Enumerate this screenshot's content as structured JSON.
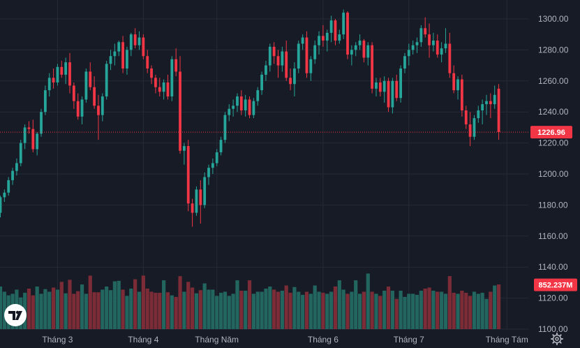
{
  "colors": {
    "background": "#171b26",
    "up": "#26a69a",
    "down": "#f23645",
    "up_volume": "#22665f",
    "down_volume": "#7b2c36",
    "grid": "#262a35",
    "text": "#b2b5be",
    "price_line": "#f23645"
  },
  "icons": {
    "logo": "tradingview-logo",
    "settings": "gear-icon"
  },
  "chart_data": {
    "type": "candlestick",
    "y_axis": {
      "range": [
        1098,
        1308
      ],
      "ticks": [
        1100,
        1120,
        1140,
        1160,
        1180,
        1200,
        1220,
        1240,
        1260,
        1280,
        1300
      ],
      "tick_labels": [
        "1100.00",
        "1120.00",
        "1140.00",
        "1160.00",
        "1180.00",
        "1200.00",
        "1220.00",
        "1240.00",
        "1260.00",
        "1280.00",
        "1300.00"
      ]
    },
    "x_axis": {
      "labels": [
        {
          "text": "Tháng 3",
          "bar": 14
        },
        {
          "text": "Tháng 4",
          "bar": 35
        },
        {
          "text": "Tháng Năm",
          "bar": 53
        },
        {
          "text": "Tháng 6",
          "bar": 79
        },
        {
          "text": "Tháng 7",
          "bar": 100
        },
        {
          "text": "Tháng Tám",
          "bar": 124
        }
      ]
    },
    "last_price": {
      "value": 1226.96,
      "label": "1226.96"
    },
    "last_volume": {
      "value": 852237000,
      "label": "852.237M"
    },
    "volume_scale_max": 1600000000,
    "ohlc": [
      [
        1175,
        1186,
        1172,
        1185
      ],
      [
        1185,
        1190,
        1182,
        1188
      ],
      [
        1188,
        1198,
        1186,
        1196
      ],
      [
        1196,
        1204,
        1193,
        1202
      ],
      [
        1202,
        1210,
        1199,
        1207
      ],
      [
        1207,
        1222,
        1205,
        1220
      ],
      [
        1220,
        1232,
        1216,
        1230
      ],
      [
        1230,
        1234,
        1226,
        1229
      ],
      [
        1229,
        1235,
        1214,
        1216
      ],
      [
        1216,
        1227,
        1212,
        1226
      ],
      [
        1226,
        1242,
        1224,
        1240
      ],
      [
        1240,
        1257,
        1238,
        1254
      ],
      [
        1254,
        1265,
        1250,
        1262
      ],
      [
        1262,
        1268,
        1255,
        1259
      ],
      [
        1259,
        1271,
        1257,
        1269
      ],
      [
        1269,
        1273,
        1262,
        1264
      ],
      [
        1264,
        1275,
        1258,
        1272
      ],
      [
        1272,
        1278,
        1252,
        1257
      ],
      [
        1257,
        1259,
        1242,
        1247
      ],
      [
        1247,
        1252,
        1235,
        1237
      ],
      [
        1237,
        1250,
        1232,
        1248
      ],
      [
        1248,
        1268,
        1246,
        1266
      ],
      [
        1266,
        1272,
        1254,
        1256
      ],
      [
        1256,
        1263,
        1242,
        1244
      ],
      [
        1244,
        1251,
        1222,
        1238
      ],
      [
        1238,
        1252,
        1234,
        1250
      ],
      [
        1250,
        1273,
        1248,
        1271
      ],
      [
        1271,
        1280,
        1267,
        1276
      ],
      [
        1276,
        1284,
        1270,
        1279
      ],
      [
        1279,
        1286,
        1276,
        1285
      ],
      [
        1285,
        1289,
        1265,
        1268
      ],
      [
        1268,
        1282,
        1264,
        1280
      ],
      [
        1280,
        1291,
        1276,
        1290
      ],
      [
        1290,
        1294,
        1281,
        1283
      ],
      [
        1283,
        1292,
        1280,
        1288
      ],
      [
        1288,
        1290,
        1274,
        1276
      ],
      [
        1276,
        1280,
        1265,
        1268
      ],
      [
        1268,
        1270,
        1258,
        1262
      ],
      [
        1262,
        1264,
        1252,
        1256
      ],
      [
        1256,
        1262,
        1250,
        1253
      ],
      [
        1253,
        1261,
        1248,
        1259
      ],
      [
        1259,
        1264,
        1248,
        1250
      ],
      [
        1250,
        1276,
        1247,
        1274
      ],
      [
        1274,
        1281,
        1263,
        1266
      ],
      [
        1266,
        1276,
        1213,
        1215
      ],
      [
        1215,
        1220,
        1206,
        1218
      ],
      [
        1218,
        1222,
        1176,
        1181
      ],
      [
        1181,
        1184,
        1166,
        1175
      ],
      [
        1175,
        1192,
        1173,
        1190
      ],
      [
        1190,
        1196,
        1168,
        1180
      ],
      [
        1180,
        1201,
        1178,
        1198
      ],
      [
        1198,
        1206,
        1193,
        1204
      ],
      [
        1204,
        1210,
        1200,
        1207
      ],
      [
        1207,
        1216,
        1205,
        1214
      ],
      [
        1214,
        1224,
        1212,
        1222
      ],
      [
        1222,
        1240,
        1220,
        1238
      ],
      [
        1238,
        1245,
        1234,
        1242
      ],
      [
        1242,
        1248,
        1237,
        1244
      ],
      [
        1244,
        1252,
        1240,
        1250
      ],
      [
        1250,
        1254,
        1238,
        1241
      ],
      [
        1241,
        1251,
        1237,
        1248
      ],
      [
        1248,
        1250,
        1236,
        1238
      ],
      [
        1238,
        1249,
        1236,
        1247
      ],
      [
        1247,
        1256,
        1244,
        1254
      ],
      [
        1254,
        1266,
        1251,
        1264
      ],
      [
        1264,
        1273,
        1260,
        1270
      ],
      [
        1270,
        1284,
        1266,
        1282
      ],
      [
        1282,
        1285,
        1271,
        1276
      ],
      [
        1276,
        1280,
        1262,
        1270
      ],
      [
        1270,
        1282,
        1266,
        1279
      ],
      [
        1279,
        1286,
        1260,
        1262
      ],
      [
        1262,
        1268,
        1254,
        1258
      ],
      [
        1258,
        1272,
        1250,
        1268
      ],
      [
        1268,
        1286,
        1265,
        1284
      ],
      [
        1284,
        1290,
        1280,
        1288
      ],
      [
        1288,
        1292,
        1262,
        1265
      ],
      [
        1265,
        1276,
        1260,
        1274
      ],
      [
        1274,
        1286,
        1271,
        1283
      ],
      [
        1283,
        1292,
        1277,
        1289
      ],
      [
        1289,
        1296,
        1282,
        1286
      ],
      [
        1286,
        1293,
        1279,
        1291
      ],
      [
        1291,
        1302,
        1285,
        1299
      ],
      [
        1299,
        1300,
        1283,
        1286
      ],
      [
        1286,
        1293,
        1284,
        1290
      ],
      [
        1290,
        1306,
        1287,
        1304
      ],
      [
        1304,
        1305,
        1274,
        1277
      ],
      [
        1277,
        1283,
        1270,
        1280
      ],
      [
        1280,
        1285,
        1276,
        1283
      ],
      [
        1283,
        1290,
        1280,
        1286
      ],
      [
        1286,
        1287,
        1272,
        1275
      ],
      [
        1275,
        1285,
        1270,
        1283
      ],
      [
        1283,
        1285,
        1252,
        1255
      ],
      [
        1255,
        1262,
        1250,
        1259
      ],
      [
        1259,
        1262,
        1250,
        1253
      ],
      [
        1253,
        1263,
        1246,
        1260
      ],
      [
        1260,
        1262,
        1240,
        1243
      ],
      [
        1243,
        1262,
        1239,
        1260
      ],
      [
        1260,
        1264,
        1247,
        1249
      ],
      [
        1249,
        1270,
        1246,
        1268
      ],
      [
        1268,
        1278,
        1265,
        1276
      ],
      [
        1276,
        1284,
        1270,
        1280
      ],
      [
        1280,
        1286,
        1277,
        1283
      ],
      [
        1283,
        1288,
        1278,
        1285
      ],
      [
        1285,
        1296,
        1282,
        1294
      ],
      [
        1294,
        1301,
        1288,
        1290
      ],
      [
        1290,
        1297,
        1275,
        1283
      ],
      [
        1283,
        1291,
        1279,
        1286
      ],
      [
        1286,
        1290,
        1275,
        1277
      ],
      [
        1277,
        1285,
        1272,
        1281
      ],
      [
        1281,
        1294,
        1278,
        1284
      ],
      [
        1284,
        1291,
        1262,
        1265
      ],
      [
        1265,
        1270,
        1252,
        1254
      ],
      [
        1254,
        1263,
        1248,
        1261
      ],
      [
        1261,
        1264,
        1237,
        1241
      ],
      [
        1241,
        1244,
        1229,
        1232
      ],
      [
        1232,
        1240,
        1218,
        1224
      ],
      [
        1224,
        1238,
        1222,
        1236
      ],
      [
        1236,
        1244,
        1233,
        1241
      ],
      [
        1241,
        1248,
        1232,
        1245
      ],
      [
        1245,
        1251,
        1238,
        1247
      ],
      [
        1247,
        1252,
        1236,
        1245
      ],
      [
        1245,
        1257,
        1242,
        1251
      ],
      [
        1255,
        1258,
        1222,
        1227
      ]
    ],
    "volume": [
      820,
      720,
      650,
      680,
      760,
      610,
      700,
      780,
      650,
      820,
      680,
      770,
      720,
      800,
      760,
      910,
      690,
      950,
      680,
      730,
      860,
      680,
      1030,
      710,
      710,
      760,
      820,
      750,
      920,
      930,
      760,
      640,
      780,
      960,
      720,
      1030,
      780,
      720,
      700,
      700,
      940,
      710,
      650,
      620,
      1020,
      720,
      910,
      800,
      690,
      750,
      880,
      760,
      760,
      640,
      700,
      720,
      640,
      680,
      940,
      740,
      740,
      940,
      680,
      720,
      720,
      780,
      820,
      760,
      720,
      740,
      840,
      700,
      810,
      720,
      660,
      720,
      680,
      840,
      720,
      700,
      680,
      720,
      820,
      940,
      760,
      680,
      720,
      940,
      680,
      720,
      1070,
      720,
      680,
      640,
      740,
      820,
      740,
      580,
      740,
      620,
      680,
      680,
      660,
      740,
      780,
      800,
      740,
      720,
      720,
      680,
      1020,
      700,
      680,
      740,
      700,
      640,
      720,
      680,
      700,
      580,
      720,
      840,
      860
    ]
  }
}
